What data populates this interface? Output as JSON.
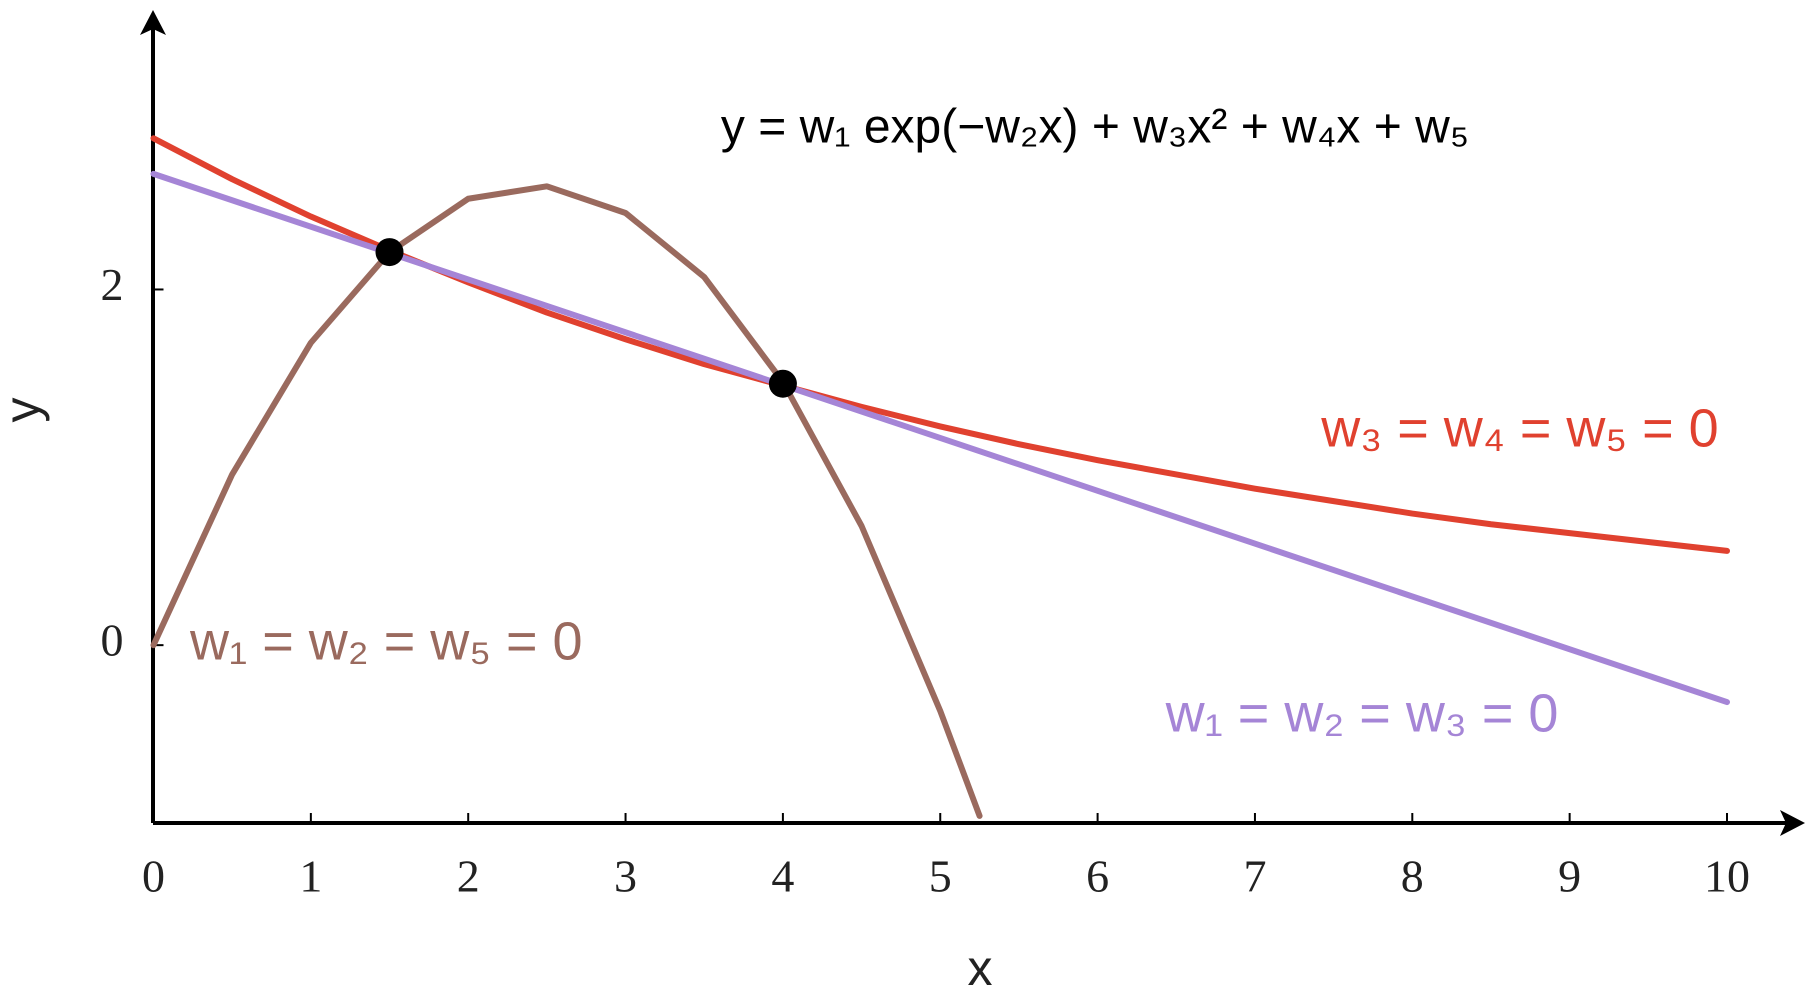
{
  "chart_data": {
    "type": "line",
    "title": "y = w₁ exp(−w₂x) + w₃x² + w₄x + w₅",
    "x_label": "x",
    "y_label": "y",
    "xlim": [
      0,
      10
    ],
    "ylim": [
      -1,
      3.5
    ],
    "xticks": [
      0,
      1,
      2,
      3,
      4,
      5,
      6,
      7,
      8,
      9,
      10
    ],
    "yticks": [
      0,
      2
    ],
    "grid": false,
    "series": [
      {
        "name": "w₃ = w₄ = w₅ = 0",
        "color": "#e0412f",
        "x": [
          0,
          0.5,
          1,
          1.5,
          2,
          2.5,
          3,
          3.5,
          4,
          4.5,
          5,
          5.5,
          6,
          6.5,
          7,
          7.5,
          8,
          8.5,
          9,
          9.5,
          10
        ],
        "values": [
          2.85,
          2.62,
          2.41,
          2.22,
          2.04,
          1.87,
          1.72,
          1.58,
          1.46,
          1.34,
          1.23,
          1.13,
          1.04,
          0.96,
          0.88,
          0.81,
          0.74,
          0.68,
          0.63,
          0.58,
          0.53
        ]
      },
      {
        "name": "w₁ = w₂ = w₃ = 0",
        "color": "#a585d6",
        "x": [
          0,
          10
        ],
        "values": [
          2.65,
          -0.32
        ]
      },
      {
        "name": "w₁ = w₂ = w₅ = 0",
        "color": "#9a6a5e",
        "x": [
          0,
          0.5,
          1,
          1.5,
          2,
          2.5,
          3,
          3.5,
          4,
          4.5,
          5,
          5.25
        ],
        "values": [
          0,
          0.96,
          1.7,
          2.21,
          2.51,
          2.58,
          2.43,
          2.07,
          1.48,
          0.67,
          -0.37,
          -0.96
        ]
      }
    ],
    "points": {
      "color": "#000000",
      "x": [
        1.5,
        4
      ],
      "values": [
        2.21,
        1.47
      ]
    }
  }
}
